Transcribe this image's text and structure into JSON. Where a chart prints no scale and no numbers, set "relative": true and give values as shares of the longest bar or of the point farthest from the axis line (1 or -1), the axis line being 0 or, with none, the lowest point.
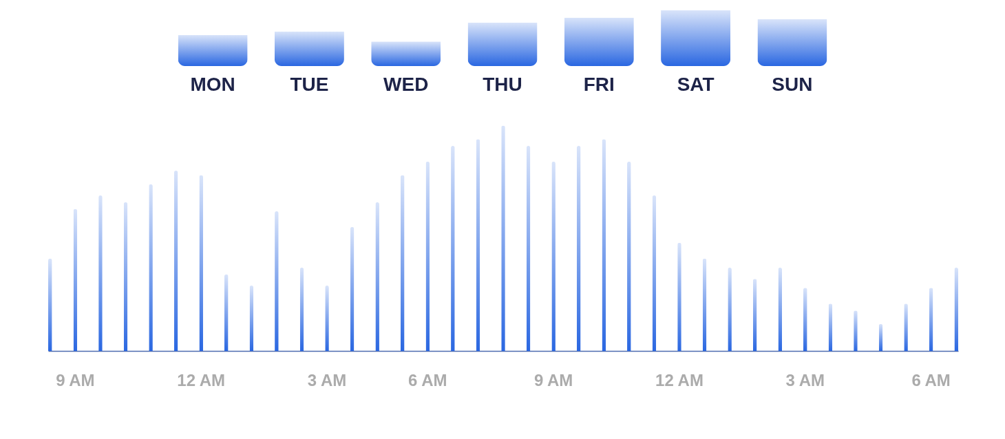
{
  "chart_data": [
    {
      "type": "bar",
      "relative": true,
      "tick_labels": "x",
      "color": "#2a67e1",
      "categories": [
        "MON",
        "TUE",
        "WED",
        "THU",
        "FRI",
        "SAT",
        "SUN"
      ],
      "values": [
        0.56,
        0.62,
        0.44,
        0.78,
        0.87,
        1,
        0.84
      ]
    },
    {
      "type": "bar",
      "relative": true,
      "tick_labels": "x",
      "color": "#2a67e1",
      "categories": [
        null,
        "9 AM",
        null,
        null,
        null,
        null,
        "12 AM",
        null,
        null,
        null,
        null,
        "3 AM",
        null,
        null,
        null,
        "6 AM",
        null,
        null,
        null,
        null,
        "9 AM",
        null,
        null,
        null,
        null,
        "12 AM",
        null,
        null,
        null,
        null,
        "3 AM",
        null,
        null,
        null,
        null,
        "6 AM",
        null
      ],
      "values": [
        0.41,
        0.63,
        0.69,
        0.66,
        0.74,
        0.8,
        0.78,
        0.34,
        0.29,
        0.62,
        0.37,
        0.29,
        0.55,
        0.66,
        0.78,
        0.84,
        0.91,
        0.94,
        1,
        0.91,
        0.84,
        0.91,
        0.94,
        0.84,
        0.69,
        0.48,
        0.41,
        0.37,
        0.32,
        0.37,
        0.28,
        0.21,
        0.18,
        0.12,
        0.21,
        0.28,
        0.37
      ]
    }
  ]
}
